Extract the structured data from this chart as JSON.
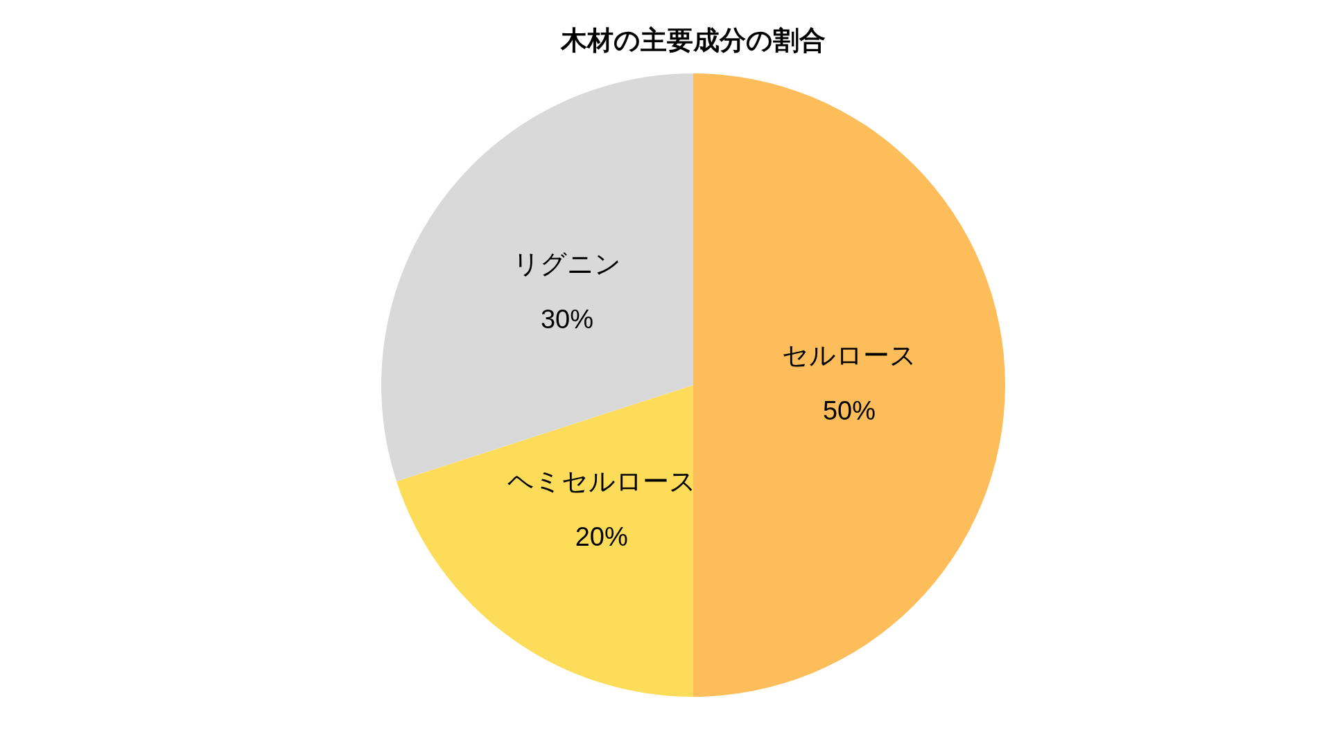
{
  "chart_data": {
    "type": "pie",
    "title": "木材の主要成分の割合",
    "categories": [
      "セルロース",
      "ヘミセルロース",
      "リグニン"
    ],
    "values": [
      50,
      20,
      30
    ],
    "value_labels": [
      "50%",
      "20%",
      "30%"
    ],
    "colors": [
      "#fdbd5a",
      "#fddc59",
      "#d9d9d9"
    ]
  }
}
